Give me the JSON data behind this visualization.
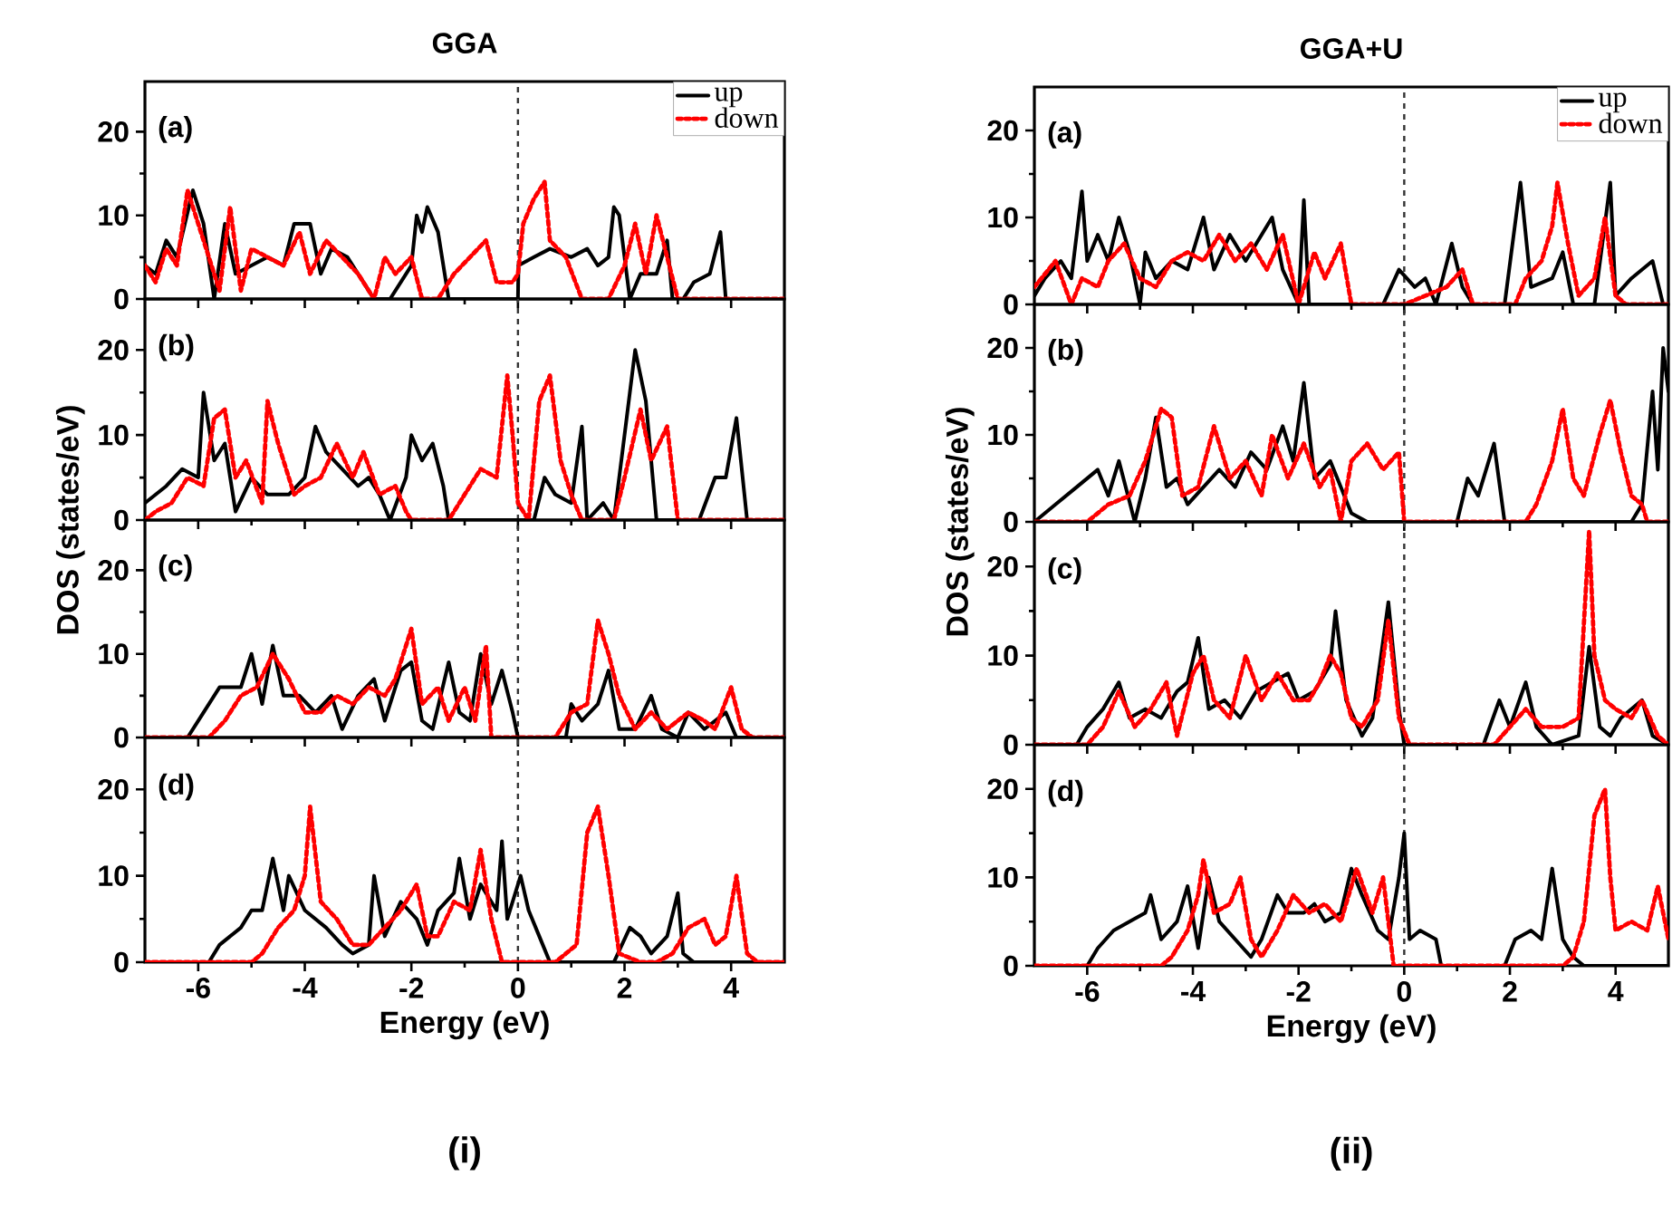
{
  "chart_data": [
    {
      "type": "line",
      "title": "GGA",
      "annotations": [
        "(a)"
      ],
      "xlim": [
        -7,
        5
      ],
      "ylim": [
        0,
        26
      ],
      "xticks": [
        -6,
        -4,
        -2,
        0,
        2,
        4
      ],
      "yticks": [
        0,
        10,
        20
      ],
      "tick_labels": "y",
      "legend": "top right",
      "ref_lines": [
        {
          "axis": "x",
          "value": 0,
          "color": "#333333",
          "line_style": "dashed"
        }
      ],
      "series": [
        {
          "name": "up",
          "color": "#000000",
          "line_style": "solid",
          "x": [
            -7,
            -6.8,
            -6.6,
            -6.4,
            -6.1,
            -5.9,
            -5.7,
            -5.5,
            -5.3,
            -5.0,
            -4.7,
            -4.4,
            -4.2,
            -3.9,
            -3.7,
            -3.5,
            -3.2,
            -3.0,
            -2.7,
            -2.4,
            -2.0,
            -1.9,
            -1.8,
            -1.7,
            -1.5,
            -1.3,
            -0.5,
            0.0,
            0.01,
            0.3,
            0.6,
            1.0,
            1.3,
            1.5,
            1.7,
            1.8,
            1.9,
            2.1,
            2.3,
            2.6,
            2.8,
            2.9,
            3.1,
            3.3,
            3.6,
            3.8,
            3.9,
            5
          ],
          "values": [
            4,
            3,
            7,
            5,
            13,
            9,
            0,
            9,
            3,
            4,
            5,
            4,
            9,
            9,
            3,
            6,
            5,
            3,
            0,
            0,
            4,
            10,
            8,
            11,
            8,
            0,
            0,
            0,
            4,
            5,
            6,
            5,
            6,
            4,
            5,
            11,
            10,
            0,
            3,
            3,
            7,
            0,
            0,
            2,
            3,
            8,
            0,
            0
          ]
        },
        {
          "name": "down",
          "color": "#ff0000",
          "line_style": "dotted",
          "x": [
            -7,
            -6.8,
            -6.6,
            -6.4,
            -6.2,
            -6.0,
            -5.8,
            -5.6,
            -5.4,
            -5.2,
            -5.0,
            -4.7,
            -4.4,
            -4.1,
            -3.9,
            -3.6,
            -3.3,
            -3.0,
            -2.7,
            -2.5,
            -2.3,
            -2.0,
            -1.8,
            -1.5,
            -1.2,
            -0.9,
            -0.6,
            -0.4,
            -0.1,
            0.0,
            0.1,
            0.3,
            0.5,
            0.6,
            0.9,
            1.2,
            1.5,
            1.7,
            2.0,
            2.2,
            2.4,
            2.6,
            2.8,
            3.0,
            5
          ],
          "values": [
            4,
            2,
            6,
            4,
            13,
            9,
            5,
            1,
            11,
            1,
            6,
            5,
            4,
            8,
            3,
            7,
            5,
            3,
            0,
            5,
            3,
            5,
            0,
            0,
            3,
            5,
            7,
            2,
            2,
            3,
            9,
            12,
            14,
            7,
            5,
            0,
            0,
            0,
            4,
            9,
            3,
            10,
            5,
            0,
            0
          ]
        }
      ]
    },
    {
      "type": "line",
      "ylabel": "DOS (states/eV)",
      "annotations": [
        "(b)"
      ],
      "xlim": [
        -7,
        5
      ],
      "ylim": [
        0,
        26
      ],
      "xticks": [
        -6,
        -4,
        -2,
        0,
        2,
        4
      ],
      "yticks": [
        0,
        10,
        20
      ],
      "tick_labels": "y",
      "ref_lines": [
        {
          "axis": "x",
          "value": 0,
          "color": "#333333",
          "line_style": "dashed"
        }
      ],
      "series": [
        {
          "color": "#000000",
          "line_style": "solid",
          "x": [
            -7,
            -6.6,
            -6.3,
            -6.0,
            -5.9,
            -5.7,
            -5.5,
            -5.3,
            -5.0,
            -4.7,
            -4.3,
            -4.0,
            -3.8,
            -3.6,
            -3.3,
            -3.0,
            -2.8,
            -2.6,
            -2.4,
            -2.1,
            -2.0,
            -1.8,
            -1.6,
            -1.4,
            -1.3,
            0.0,
            0.3,
            0.5,
            0.7,
            1.0,
            1.2,
            1.3,
            1.6,
            1.8,
            2.1,
            2.2,
            2.4,
            2.6,
            3.4,
            3.7,
            3.9,
            4.1,
            4.3,
            5
          ],
          "values": [
            2,
            4,
            6,
            5,
            15,
            7,
            9,
            1,
            5,
            3,
            3,
            5,
            11,
            8,
            6,
            4,
            5,
            3,
            0,
            5,
            10,
            7,
            9,
            4,
            0,
            0,
            0,
            5,
            3,
            2,
            11,
            0,
            2,
            0,
            15,
            20,
            14,
            0,
            0,
            5,
            5,
            12,
            0,
            0
          ]
        },
        {
          "color": "#ff0000",
          "line_style": "dotted",
          "x": [
            -7,
            -6.8,
            -6.5,
            -6.2,
            -5.9,
            -5.7,
            -5.5,
            -5.3,
            -5.1,
            -4.8,
            -4.7,
            -4.5,
            -4.2,
            -4.0,
            -3.7,
            -3.4,
            -3.1,
            -2.9,
            -2.6,
            -2.3,
            -2.1,
            -2.0,
            -1.3,
            -1.0,
            -0.7,
            -0.4,
            -0.2,
            -0.1,
            0.0,
            0.2,
            0.4,
            0.6,
            0.8,
            1.0,
            1.2,
            1.8,
            2.0,
            2.3,
            2.5,
            2.8,
            3.0,
            5
          ],
          "values": [
            0,
            1,
            2,
            5,
            4,
            12,
            13,
            5,
            7,
            2,
            14,
            9,
            3,
            4,
            5,
            9,
            5,
            8,
            3,
            4,
            1,
            0,
            0,
            3,
            6,
            5,
            17,
            10,
            2,
            0,
            14,
            17,
            7,
            3,
            0,
            0,
            5,
            13,
            7,
            11,
            0,
            0
          ]
        }
      ]
    },
    {
      "type": "line",
      "annotations": [
        "(c)"
      ],
      "xlim": [
        -7,
        5
      ],
      "ylim": [
        0,
        26
      ],
      "xticks": [
        -6,
        -4,
        -2,
        0,
        2,
        4
      ],
      "yticks": [
        0,
        10,
        20
      ],
      "tick_labels": "y",
      "ref_lines": [
        {
          "axis": "x",
          "value": 0,
          "color": "#333333",
          "line_style": "dashed"
        }
      ],
      "series": [
        {
          "color": "#000000",
          "line_style": "solid",
          "x": [
            -7,
            -6.2,
            -5.9,
            -5.6,
            -5.2,
            -5.0,
            -4.8,
            -4.6,
            -4.4,
            -4.1,
            -3.8,
            -3.5,
            -3.3,
            -3.0,
            -2.7,
            -2.5,
            -2.2,
            -2.0,
            -1.8,
            -1.6,
            -1.3,
            -1.1,
            -0.9,
            -0.7,
            -0.5,
            -0.3,
            -0.1,
            0.0,
            0.9,
            1.0,
            1.2,
            1.5,
            1.7,
            1.9,
            2.2,
            2.5,
            2.7,
            3.0,
            3.2,
            3.5,
            3.9,
            4.1,
            5
          ],
          "values": [
            0,
            0,
            3,
            6,
            6,
            10,
            4,
            11,
            5,
            5,
            3,
            5,
            1,
            5,
            7,
            2,
            8,
            9,
            2,
            1,
            9,
            3,
            2,
            10,
            4,
            8,
            3,
            0,
            0,
            4,
            2,
            4,
            8,
            1,
            1,
            5,
            1,
            0,
            3,
            1,
            3,
            0,
            0
          ]
        },
        {
          "color": "#ff0000",
          "line_style": "dotted",
          "x": [
            -7,
            -5.8,
            -5.5,
            -5.2,
            -4.9,
            -4.6,
            -4.3,
            -4.0,
            -3.7,
            -3.4,
            -3.1,
            -2.8,
            -2.5,
            -2.3,
            -2.0,
            -1.8,
            -1.5,
            -1.3,
            -1.0,
            -0.8,
            -0.6,
            -0.5,
            -0.3,
            0.0,
            0.7,
            1.0,
            1.3,
            1.5,
            1.7,
            1.9,
            2.2,
            2.5,
            2.8,
            3.2,
            3.5,
            3.7,
            4.0,
            4.2,
            4.4,
            5
          ],
          "values": [
            0,
            0,
            2,
            5,
            6,
            10,
            7,
            3,
            3,
            5,
            4,
            6,
            5,
            7,
            13,
            4,
            6,
            2,
            6,
            2,
            11,
            0,
            0,
            0,
            0,
            3,
            4,
            14,
            10,
            5,
            1,
            3,
            1,
            3,
            2,
            1,
            6,
            1,
            0,
            0
          ]
        }
      ]
    },
    {
      "type": "line",
      "xlabel": "Energy (eV)",
      "annotations": [
        "(d)",
        "(i)"
      ],
      "xlim": [
        -7,
        5
      ],
      "ylim": [
        0,
        26
      ],
      "xticks": [
        -6,
        -4,
        -2,
        0,
        2,
        4
      ],
      "yticks": [
        0,
        10,
        20
      ],
      "ref_lines": [
        {
          "axis": "x",
          "value": 0,
          "color": "#333333",
          "line_style": "dashed"
        }
      ],
      "series": [
        {
          "color": "#000000",
          "line_style": "solid",
          "x": [
            -7,
            -5.8,
            -5.6,
            -5.2,
            -5.0,
            -4.8,
            -4.6,
            -4.4,
            -4.3,
            -4.0,
            -3.6,
            -3.3,
            -3.1,
            -2.8,
            -2.7,
            -2.5,
            -2.2,
            -1.9,
            -1.7,
            -1.5,
            -1.2,
            -1.1,
            -0.9,
            -0.7,
            -0.4,
            -0.3,
            -0.2,
            -0.1,
            0.05,
            0.2,
            0.4,
            0.6,
            1.8,
            2.1,
            2.3,
            2.5,
            2.8,
            3.0,
            3.1,
            3.3,
            5
          ],
          "values": [
            0,
            0,
            2,
            4,
            6,
            6,
            12,
            6,
            10,
            6,
            4,
            2,
            1,
            2,
            10,
            3,
            7,
            5,
            2,
            6,
            8,
            12,
            5,
            9,
            6,
            14,
            5,
            7,
            10,
            6,
            3,
            0,
            0,
            4,
            3,
            1,
            3,
            8,
            1,
            0,
            0
          ]
        },
        {
          "color": "#ff0000",
          "line_style": "dotted",
          "x": [
            -7,
            -5.0,
            -4.8,
            -4.5,
            -4.2,
            -4.0,
            -3.9,
            -3.7,
            -3.4,
            -3.1,
            -2.8,
            -2.5,
            -2.2,
            -1.9,
            -1.7,
            -1.5,
            -1.2,
            -0.9,
            -0.7,
            -0.5,
            -0.3,
            0.0,
            0.7,
            0.9,
            1.1,
            1.3,
            1.5,
            1.7,
            1.9,
            2.3,
            2.6,
            2.9,
            3.2,
            3.5,
            3.7,
            3.9,
            4.1,
            4.3,
            4.5,
            5
          ],
          "values": [
            0,
            0,
            1,
            4,
            6,
            10,
            18,
            7,
            5,
            2,
            2,
            4,
            6,
            9,
            3,
            3,
            7,
            6,
            13,
            5,
            0,
            0,
            0,
            1,
            2,
            15,
            18,
            10,
            1,
            0,
            0,
            1,
            4,
            5,
            2,
            3,
            10,
            1,
            0,
            0
          ]
        }
      ]
    },
    {
      "type": "line",
      "title": "GGA+U",
      "annotations": [
        "(a)"
      ],
      "xlim": [
        -7,
        5
      ],
      "ylim": [
        0,
        25
      ],
      "xticks": [
        -6,
        -4,
        -2,
        0,
        2,
        4
      ],
      "yticks": [
        0,
        10,
        20
      ],
      "tick_labels": "y",
      "legend": "top right",
      "ref_lines": [
        {
          "axis": "x",
          "value": 0,
          "color": "#333333",
          "line_style": "dashed"
        }
      ],
      "series": [
        {
          "name": "up",
          "color": "#000000",
          "line_style": "solid",
          "x": [
            -7,
            -6.8,
            -6.5,
            -6.3,
            -6.1,
            -6.0,
            -5.8,
            -5.6,
            -5.4,
            -5.2,
            -5.0,
            -4.9,
            -4.7,
            -4.4,
            -4.1,
            -3.8,
            -3.6,
            -3.3,
            -3.0,
            -2.7,
            -2.5,
            -2.3,
            -2.0,
            -1.9,
            -1.8,
            -0.4,
            -0.1,
            0.2,
            0.4,
            0.6,
            0.9,
            1.1,
            1.3,
            1.9,
            2.2,
            2.4,
            2.8,
            3.0,
            3.2,
            3.6,
            3.9,
            4.0,
            4.3,
            4.7,
            4.9,
            5
          ],
          "values": [
            1,
            3,
            5,
            3,
            13,
            5,
            8,
            5,
            10,
            6,
            0,
            6,
            3,
            5,
            4,
            10,
            4,
            8,
            5,
            8,
            10,
            4,
            0,
            12,
            0,
            0,
            4,
            2,
            3,
            0,
            7,
            2,
            0,
            0,
            14,
            2,
            3,
            6,
            0,
            0,
            14,
            1,
            3,
            5,
            0,
            0
          ]
        },
        {
          "name": "down",
          "color": "#ff0000",
          "line_style": "dotted",
          "x": [
            -7,
            -6.6,
            -6.3,
            -6.1,
            -5.8,
            -5.6,
            -5.3,
            -5.0,
            -4.7,
            -4.4,
            -4.1,
            -3.8,
            -3.5,
            -3.2,
            -2.9,
            -2.6,
            -2.3,
            -2.0,
            -1.7,
            -1.5,
            -1.2,
            -1.0,
            0.0,
            0.4,
            0.8,
            1.1,
            1.3,
            2.1,
            2.3,
            2.6,
            2.8,
            2.9,
            3.1,
            3.3,
            3.6,
            3.8,
            4.0,
            4.2,
            5
          ],
          "values": [
            2,
            5,
            0,
            3,
            2,
            5,
            7,
            3,
            2,
            5,
            6,
            5,
            8,
            5,
            7,
            4,
            8,
            0,
            6,
            3,
            7,
            0,
            0,
            1,
            2,
            4,
            0,
            0,
            3,
            5,
            9,
            14,
            7,
            1,
            3,
            10,
            1,
            0,
            0
          ]
        }
      ]
    },
    {
      "type": "line",
      "ylabel": "DOS (states/eV)",
      "annotations": [
        "(b)"
      ],
      "xlim": [
        -7,
        5
      ],
      "ylim": [
        0,
        25
      ],
      "xticks": [
        -6,
        -4,
        -2,
        0,
        2,
        4
      ],
      "yticks": [
        0,
        10,
        20
      ],
      "tick_labels": "y",
      "ref_lines": [
        {
          "axis": "x",
          "value": 0,
          "color": "#333333",
          "line_style": "dashed"
        }
      ],
      "series": [
        {
          "color": "#000000",
          "line_style": "solid",
          "x": [
            -7,
            -6.6,
            -6.2,
            -5.8,
            -5.6,
            -5.4,
            -5.1,
            -4.9,
            -4.7,
            -4.5,
            -4.3,
            -4.1,
            -3.8,
            -3.5,
            -3.2,
            -2.9,
            -2.6,
            -2.3,
            -2.1,
            -1.9,
            -1.7,
            -1.4,
            -1.2,
            -1.0,
            -0.7,
            0.0,
            1.0,
            1.2,
            1.4,
            1.7,
            1.9,
            4.3,
            4.5,
            4.7,
            4.8,
            4.9,
            5
          ],
          "values": [
            0,
            2,
            4,
            6,
            3,
            7,
            0,
            5,
            12,
            4,
            5,
            2,
            4,
            6,
            4,
            8,
            6,
            11,
            7,
            16,
            5,
            7,
            4,
            1,
            0,
            0,
            0,
            5,
            3,
            9,
            0,
            0,
            2,
            15,
            6,
            20,
            15
          ]
        },
        {
          "color": "#ff0000",
          "line_style": "dotted",
          "x": [
            -7,
            -6.0,
            -5.6,
            -5.2,
            -4.9,
            -4.6,
            -4.4,
            -4.2,
            -3.9,
            -3.6,
            -3.3,
            -3.0,
            -2.7,
            -2.5,
            -2.2,
            -1.9,
            -1.6,
            -1.4,
            -1.2,
            -1.0,
            -0.7,
            -0.4,
            -0.1,
            0.0,
            2.3,
            2.5,
            2.8,
            3.0,
            3.2,
            3.4,
            3.7,
            3.9,
            4.1,
            4.3,
            4.5,
            4.6,
            5
          ],
          "values": [
            0,
            0,
            2,
            3,
            7,
            13,
            12,
            3,
            4,
            11,
            5,
            7,
            3,
            10,
            5,
            9,
            4,
            6,
            0,
            7,
            9,
            6,
            8,
            0,
            0,
            2,
            7,
            13,
            5,
            3,
            10,
            14,
            8,
            3,
            2,
            0,
            0
          ]
        }
      ]
    },
    {
      "type": "line",
      "annotations": [
        "(c)"
      ],
      "xlim": [
        -7,
        5
      ],
      "ylim": [
        0,
        25
      ],
      "xticks": [
        -6,
        -4,
        -2,
        0,
        2,
        4
      ],
      "yticks": [
        0,
        10,
        20
      ],
      "tick_labels": "y",
      "ref_lines": [
        {
          "axis": "x",
          "value": 0,
          "color": "#333333",
          "line_style": "dashed"
        }
      ],
      "series": [
        {
          "color": "#000000",
          "line_style": "solid",
          "x": [
            -7,
            -6.2,
            -6.0,
            -5.7,
            -5.4,
            -5.2,
            -4.9,
            -4.6,
            -4.3,
            -4.1,
            -3.9,
            -3.7,
            -3.4,
            -3.1,
            -2.8,
            -2.5,
            -2.2,
            -2.0,
            -1.7,
            -1.4,
            -1.3,
            -1.1,
            -0.8,
            -0.6,
            -0.3,
            -0.1,
            0.0,
            1.5,
            1.8,
            2.0,
            2.3,
            2.5,
            2.8,
            3.3,
            3.5,
            3.7,
            3.9,
            4.1,
            4.5,
            4.7,
            5
          ],
          "values": [
            0,
            0,
            2,
            4,
            7,
            3,
            4,
            3,
            6,
            7,
            12,
            4,
            5,
            3,
            6,
            7,
            8,
            5,
            6,
            9,
            15,
            5,
            1,
            3,
            16,
            4,
            0,
            0,
            5,
            2,
            7,
            2,
            0,
            1,
            11,
            2,
            1,
            3,
            5,
            1,
            0
          ]
        },
        {
          "color": "#ff0000",
          "line_style": "dotted",
          "x": [
            -7,
            -6.0,
            -5.7,
            -5.4,
            -5.1,
            -4.8,
            -4.5,
            -4.3,
            -4.0,
            -3.8,
            -3.6,
            -3.3,
            -3.0,
            -2.7,
            -2.4,
            -2.1,
            -1.8,
            -1.6,
            -1.4,
            -1.2,
            -1.0,
            -0.8,
            -0.5,
            -0.3,
            -0.1,
            0.1,
            1.7,
            2.0,
            2.3,
            2.6,
            3.0,
            3.3,
            3.5,
            3.6,
            3.8,
            4.0,
            4.3,
            4.5,
            4.8,
            5
          ],
          "values": [
            0,
            0,
            2,
            6,
            2,
            4,
            7,
            1,
            8,
            10,
            5,
            3,
            10,
            5,
            8,
            5,
            5,
            7,
            10,
            8,
            3,
            2,
            5,
            14,
            3,
            0,
            0,
            2,
            4,
            2,
            2,
            3,
            24,
            10,
            5,
            4,
            3,
            5,
            1,
            0
          ]
        }
      ]
    },
    {
      "type": "line",
      "xlabel": "Energy (eV)",
      "annotations": [
        "(d)",
        "(ii)"
      ],
      "xlim": [
        -7,
        5
      ],
      "ylim": [
        0,
        25
      ],
      "xticks": [
        -6,
        -4,
        -2,
        0,
        2,
        4
      ],
      "yticks": [
        0,
        10,
        20
      ],
      "ref_lines": [
        {
          "axis": "x",
          "value": 0,
          "color": "#333333",
          "line_style": "dashed"
        }
      ],
      "series": [
        {
          "color": "#000000",
          "line_style": "solid",
          "x": [
            -7,
            -6.0,
            -5.8,
            -5.5,
            -5.2,
            -4.9,
            -4.8,
            -4.6,
            -4.3,
            -4.1,
            -3.9,
            -3.7,
            -3.5,
            -3.2,
            -2.9,
            -2.7,
            -2.4,
            -2.2,
            -1.9,
            -1.7,
            -1.5,
            -1.2,
            -1.0,
            -0.8,
            -0.5,
            -0.3,
            -0.1,
            0.0,
            0.1,
            0.3,
            0.6,
            0.7,
            1.9,
            2.1,
            2.4,
            2.6,
            2.8,
            3.0,
            3.2,
            3.4,
            5
          ],
          "values": [
            0,
            0,
            2,
            4,
            5,
            6,
            8,
            3,
            5,
            9,
            2,
            10,
            5,
            3,
            1,
            3,
            8,
            6,
            6,
            7,
            5,
            6,
            11,
            8,
            4,
            3,
            10,
            15,
            3,
            4,
            3,
            0,
            0,
            3,
            4,
            3,
            11,
            3,
            1,
            0,
            0
          ]
        },
        {
          "color": "#ff0000",
          "line_style": "dotted",
          "x": [
            -7,
            -4.6,
            -4.4,
            -4.1,
            -3.9,
            -3.8,
            -3.6,
            -3.3,
            -3.1,
            -2.9,
            -2.7,
            -2.4,
            -2.1,
            -1.8,
            -1.5,
            -1.2,
            -0.9,
            -0.6,
            -0.4,
            -0.2,
            0.0,
            3.0,
            3.2,
            3.4,
            3.6,
            3.8,
            3.9,
            4.0,
            4.3,
            4.6,
            4.8,
            5
          ],
          "values": [
            0,
            0,
            1,
            4,
            8,
            12,
            6,
            7,
            10,
            3,
            1,
            4,
            8,
            6,
            7,
            5,
            11,
            6,
            10,
            0,
            0,
            0,
            1,
            5,
            17,
            20,
            10,
            4,
            5,
            4,
            9,
            3
          ]
        }
      ]
    }
  ]
}
